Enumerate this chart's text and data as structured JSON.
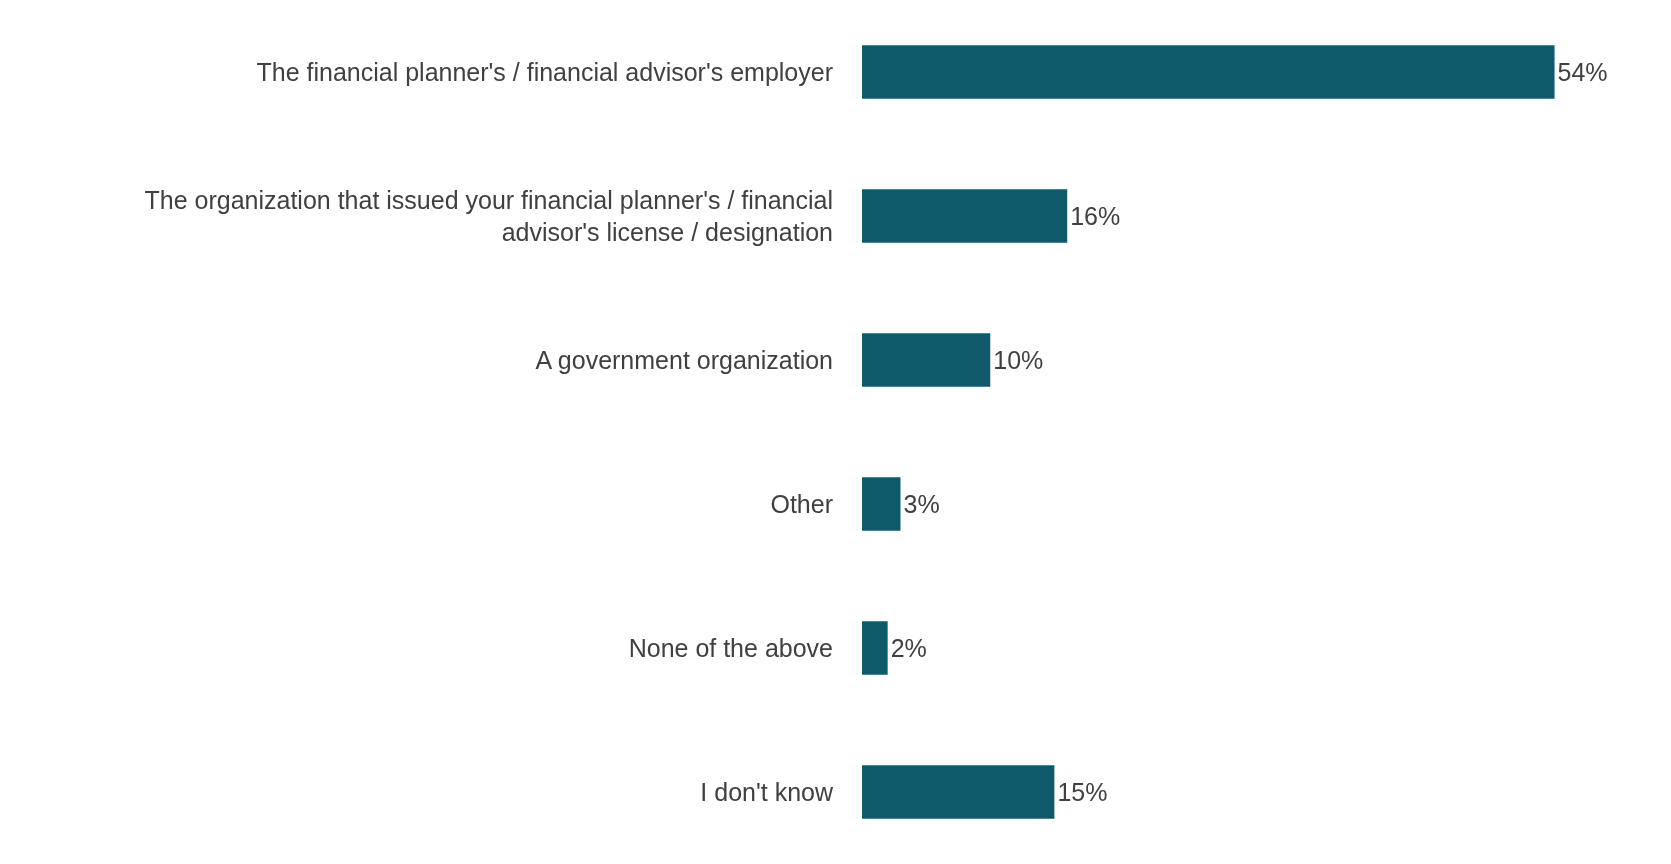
{
  "chart_data": {
    "type": "bar",
    "orientation": "horizontal",
    "categories": [
      "The financial planner's / financial advisor's employer",
      "The organization that issued your financial planner's / financial advisor's license / designation",
      "A government organization",
      "Other",
      "None of the above",
      "I don't know"
    ],
    "values": [
      54,
      16,
      10,
      3,
      2,
      15
    ],
    "value_labels": [
      "54%",
      "16%",
      "10%",
      "3%",
      "2%",
      "15%"
    ],
    "color": "#0f5a6a",
    "grid": false,
    "legend": false
  }
}
